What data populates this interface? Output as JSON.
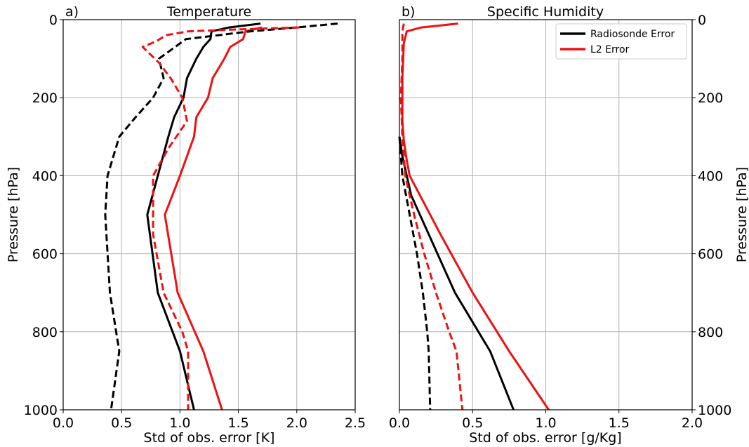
{
  "chart_data": [
    {
      "type": "line",
      "panel_label": "a)",
      "title": "Temperature",
      "xlabel": "Std of obs. error [K]",
      "ylabel": "Pressure [hPa]",
      "xlim": [
        0,
        2.5
      ],
      "ylim": [
        1000,
        0
      ],
      "y_inverted": true,
      "x_ticks": [
        "0.0",
        "0.5",
        "1.0",
        "1.5",
        "2.0",
        "2.5"
      ],
      "y_ticks": [
        "0",
        "200",
        "400",
        "600",
        "800",
        "1000"
      ],
      "grid": true,
      "series": [
        {
          "color": "#000000",
          "dash": "solid",
          "points": [
            [
              1.69,
              10
            ],
            [
              1.42,
              20
            ],
            [
              1.27,
              30
            ],
            [
              1.26,
              50
            ],
            [
              1.2,
              70
            ],
            [
              1.14,
              100
            ],
            [
              1.06,
              150
            ],
            [
              1.03,
              200
            ],
            [
              0.95,
              250
            ],
            [
              0.9,
              300
            ],
            [
              0.72,
              500
            ],
            [
              0.81,
              700
            ],
            [
              1.0,
              850
            ],
            [
              1.12,
              1000
            ]
          ]
        },
        {
          "color": "#ee1111",
          "dash": "solid",
          "points": [
            [
              1.7,
              20
            ],
            [
              1.56,
              30
            ],
            [
              1.54,
              50
            ],
            [
              1.43,
              70
            ],
            [
              1.38,
              100
            ],
            [
              1.28,
              150
            ],
            [
              1.24,
              200
            ],
            [
              1.14,
              250
            ],
            [
              1.12,
              300
            ],
            [
              1.0,
              400
            ],
            [
              0.87,
              500
            ],
            [
              0.98,
              700
            ],
            [
              1.2,
              850
            ],
            [
              1.36,
              1000
            ]
          ]
        },
        {
          "color": "#000000",
          "dash": "dashed",
          "points": [
            [
              2.35,
              10
            ],
            [
              2.0,
              20
            ],
            [
              1.6,
              30
            ],
            [
              1.05,
              50
            ],
            [
              0.82,
              100
            ],
            [
              0.86,
              150
            ],
            [
              0.77,
              200
            ],
            [
              0.62,
              250
            ],
            [
              0.48,
              300
            ],
            [
              0.38,
              400
            ],
            [
              0.36,
              500
            ],
            [
              0.4,
              700
            ],
            [
              0.48,
              850
            ],
            [
              0.41,
              1000
            ]
          ]
        },
        {
          "color": "#ee1111",
          "dash": "dashed",
          "points": [
            [
              2.02,
              20
            ],
            [
              1.5,
              25
            ],
            [
              1.07,
              30
            ],
            [
              0.88,
              40
            ],
            [
              0.8,
              55
            ],
            [
              0.68,
              70
            ],
            [
              0.82,
              110
            ],
            [
              0.92,
              150
            ],
            [
              1.02,
              200
            ],
            [
              1.06,
              260
            ],
            [
              0.9,
              330
            ],
            [
              0.77,
              400
            ],
            [
              0.77,
              550
            ],
            [
              0.86,
              700
            ],
            [
              1.02,
              800
            ],
            [
              1.07,
              850
            ],
            [
              1.07,
              1000
            ]
          ]
        }
      ]
    },
    {
      "type": "line",
      "panel_label": "b)",
      "title": "Specific Humidity",
      "xlabel": "Std of obs. error [g/Kg]",
      "ylabel": "Pressure [hPa]",
      "xlim": [
        0,
        2.0
      ],
      "ylim": [
        1000,
        0
      ],
      "y_inverted": true,
      "x_ticks": [
        "0.0",
        "0.5",
        "1.0",
        "1.5",
        "2.0"
      ],
      "y_ticks": [
        "0",
        "200",
        "400",
        "600",
        "800",
        "1000"
      ],
      "grid": true,
      "legend": {
        "position": "top-right",
        "entries": [
          {
            "label": "Radiosonde Error",
            "color": "#000000"
          },
          {
            "label": "L2 Error",
            "color": "#ee1111"
          }
        ]
      },
      "series": [
        {
          "color": "#000000",
          "dash": "solid",
          "points": [
            [
              0.0,
              300
            ],
            [
              0.02,
              350
            ],
            [
              0.08,
              450
            ],
            [
              0.2,
              550
            ],
            [
              0.38,
              700
            ],
            [
              0.62,
              850
            ],
            [
              0.78,
              1000
            ]
          ]
        },
        {
          "color": "#ee1111",
          "dash": "solid",
          "points": [
            [
              0.4,
              10
            ],
            [
              0.15,
              20
            ],
            [
              0.05,
              30
            ],
            [
              0.03,
              60
            ],
            [
              0.02,
              150
            ],
            [
              0.02,
              260
            ],
            [
              0.03,
              310
            ],
            [
              0.05,
              360
            ],
            [
              0.07,
              400
            ],
            [
              0.28,
              550
            ],
            [
              0.5,
              700
            ],
            [
              0.75,
              850
            ],
            [
              1.02,
              1000
            ]
          ]
        },
        {
          "color": "#000000",
          "dash": "dashed",
          "points": [
            [
              0.0,
              300
            ],
            [
              0.02,
              400
            ],
            [
              0.07,
              500
            ],
            [
              0.12,
              600
            ],
            [
              0.16,
              700
            ],
            [
              0.19,
              800
            ],
            [
              0.2,
              850
            ],
            [
              0.21,
              1000
            ]
          ]
        },
        {
          "color": "#ee1111",
          "dash": "dashed",
          "points": [
            [
              0.03,
              10
            ],
            [
              0.02,
              30
            ],
            [
              0.02,
              100
            ],
            [
              0.01,
              200
            ],
            [
              0.02,
              300
            ],
            [
              0.04,
              400
            ],
            [
              0.1,
              500
            ],
            [
              0.17,
              600
            ],
            [
              0.25,
              700
            ],
            [
              0.34,
              800
            ],
            [
              0.39,
              850
            ],
            [
              0.43,
              1000
            ]
          ]
        }
      ]
    }
  ]
}
